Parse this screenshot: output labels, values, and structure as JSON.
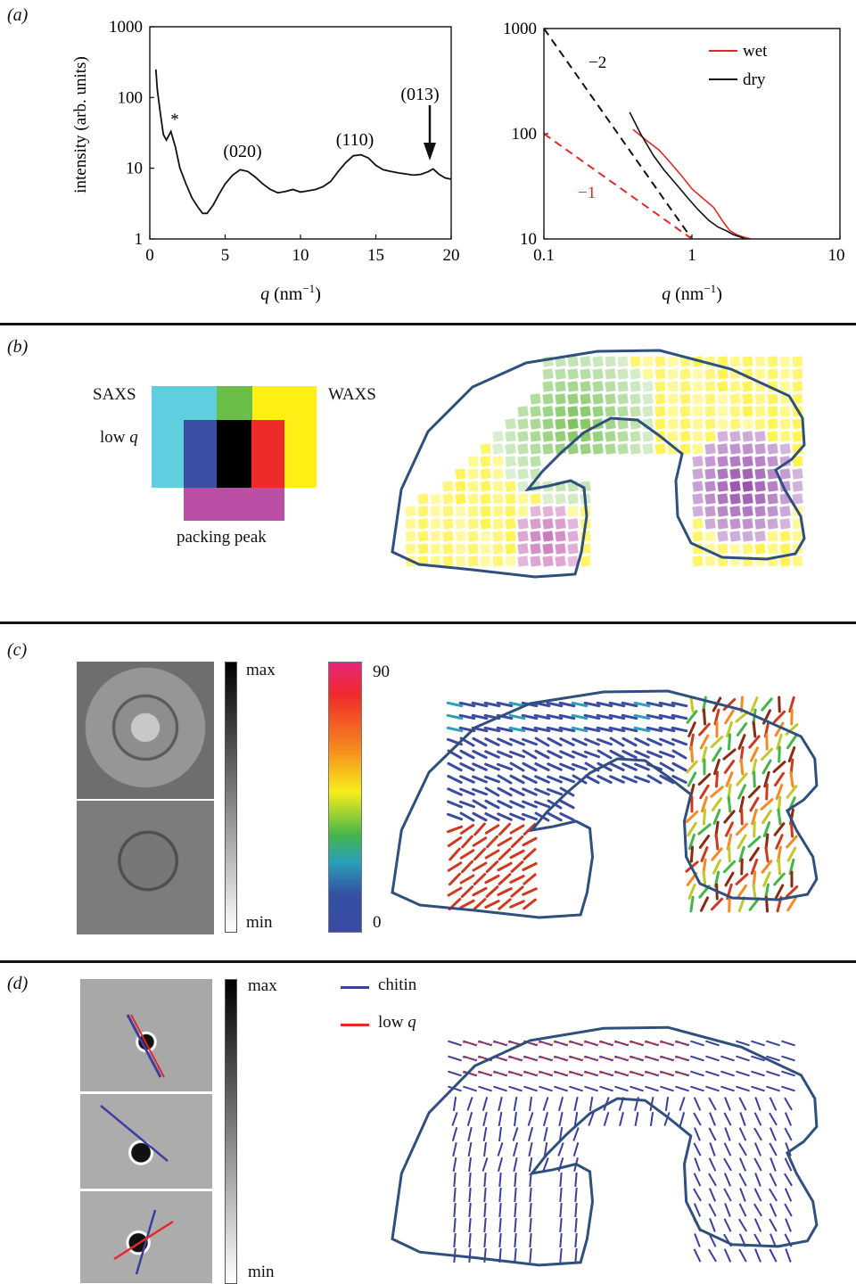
{
  "panels": {
    "a": "(a)",
    "b": "(b)",
    "c": "(c)",
    "d": "(d)"
  },
  "chart_data": [
    {
      "type": "line",
      "ylabel": "intensity (arb. units)",
      "xlabel_q": "q",
      "xlabel_unit": " (nm",
      "xlabel_exp": "−1",
      "xlabel_close": ")",
      "yscale": "log",
      "xlim": [
        0,
        20
      ],
      "ylim": [
        1,
        1000
      ],
      "xticks": [
        "0",
        "5",
        "10",
        "15",
        "20"
      ],
      "yticks": [
        "1",
        "10",
        "100",
        "1000"
      ],
      "annotations": [
        "*",
        "(020)",
        "(110)",
        "(013)"
      ],
      "series": [
        {
          "x": [
            0.4,
            0.5,
            0.7,
            0.9,
            1.1,
            1.4,
            1.7,
            2.0,
            2.4,
            2.8,
            3.2,
            3.5,
            3.8,
            4.2,
            4.6,
            5.0,
            5.5,
            6.0,
            6.5,
            7.0,
            7.5,
            8.0,
            8.5,
            9.0,
            9.5,
            10.0,
            10.5,
            11.0,
            11.5,
            12.0,
            12.5,
            13.0,
            13.5,
            14.0,
            14.5,
            15.0,
            15.5,
            16.0,
            16.5,
            17.0,
            17.5,
            18.0,
            18.5,
            18.8,
            19.2,
            19.6,
            20.0
          ],
          "y": [
            250,
            130,
            60,
            30,
            25,
            33,
            20,
            10,
            6,
            3.8,
            2.8,
            2.3,
            2.3,
            3,
            4.3,
            6,
            8,
            9.5,
            9,
            7.5,
            6,
            5,
            4.5,
            4.7,
            5,
            4.6,
            4.8,
            5,
            5.5,
            6.5,
            9,
            12,
            15,
            15.5,
            14,
            11,
            9.5,
            9,
            8.6,
            8.3,
            8,
            8.2,
            9,
            9.8,
            8.2,
            7.3,
            7
          ]
        }
      ]
    },
    {
      "type": "line",
      "xscale": "log",
      "yscale": "log",
      "xlim": [
        0.1,
        10
      ],
      "ylim": [
        10,
        1000
      ],
      "xticks": [
        "0.1",
        "1",
        "10"
      ],
      "yticks": [
        "10",
        "100",
        "1000"
      ],
      "xlabel_q": "q",
      "xlabel_unit": " (nm",
      "xlabel_exp": "−1",
      "xlabel_close": ")",
      "series": [
        {
          "name": "wet",
          "color": "#e8262a",
          "x": [
            0.4,
            0.5,
            0.6,
            0.7,
            0.85,
            1.0,
            1.2,
            1.4,
            1.6,
            1.8,
            2.0,
            2.2,
            2.5
          ],
          "y": [
            110,
            85,
            70,
            55,
            40,
            30,
            24,
            20,
            15,
            12,
            11,
            10.5,
            10
          ]
        },
        {
          "name": "dry",
          "color": "#111111",
          "x": [
            0.38,
            0.45,
            0.55,
            0.65,
            0.8,
            0.95,
            1.1,
            1.3,
            1.5,
            1.7,
            1.9,
            2.1,
            2.3
          ],
          "y": [
            160,
            100,
            62,
            45,
            32,
            24,
            19,
            15,
            13,
            12,
            11,
            10.5,
            10
          ]
        }
      ],
      "guides": [
        {
          "label": "−2",
          "color": "#111111",
          "x": [
            0.1,
            1.0
          ],
          "y": [
            1000,
            10
          ]
        },
        {
          "label": "−1",
          "color": "#e8262a",
          "x": [
            0.1,
            1.0
          ],
          "y": [
            100,
            10
          ]
        }
      ]
    }
  ],
  "panel_b": {
    "saxs": "SAXS",
    "waxs": "WAXS",
    "low_q_text": "low ",
    "low_q_italic": "q",
    "packing_peak": "packing peak",
    "colors": {
      "cyan": "#5fcfdf",
      "yellow": "#ffef14",
      "green": "#6abd46",
      "blue": "#3b4ea3",
      "black": "#000000",
      "red": "#ee2a2a",
      "magenta": "#bb4ea5"
    }
  },
  "panel_c": {
    "gray_max": "max",
    "gray_min": "min",
    "hue_max": "90",
    "hue_min": "0"
  },
  "panel_d": {
    "gray_max": "max",
    "gray_min": "min",
    "legend_chitin": "chitin",
    "legend_lowq_text": "low ",
    "legend_lowq_italic": "q",
    "chitin_color": "#3b3f9e",
    "lowq_color": "#e8262a"
  }
}
